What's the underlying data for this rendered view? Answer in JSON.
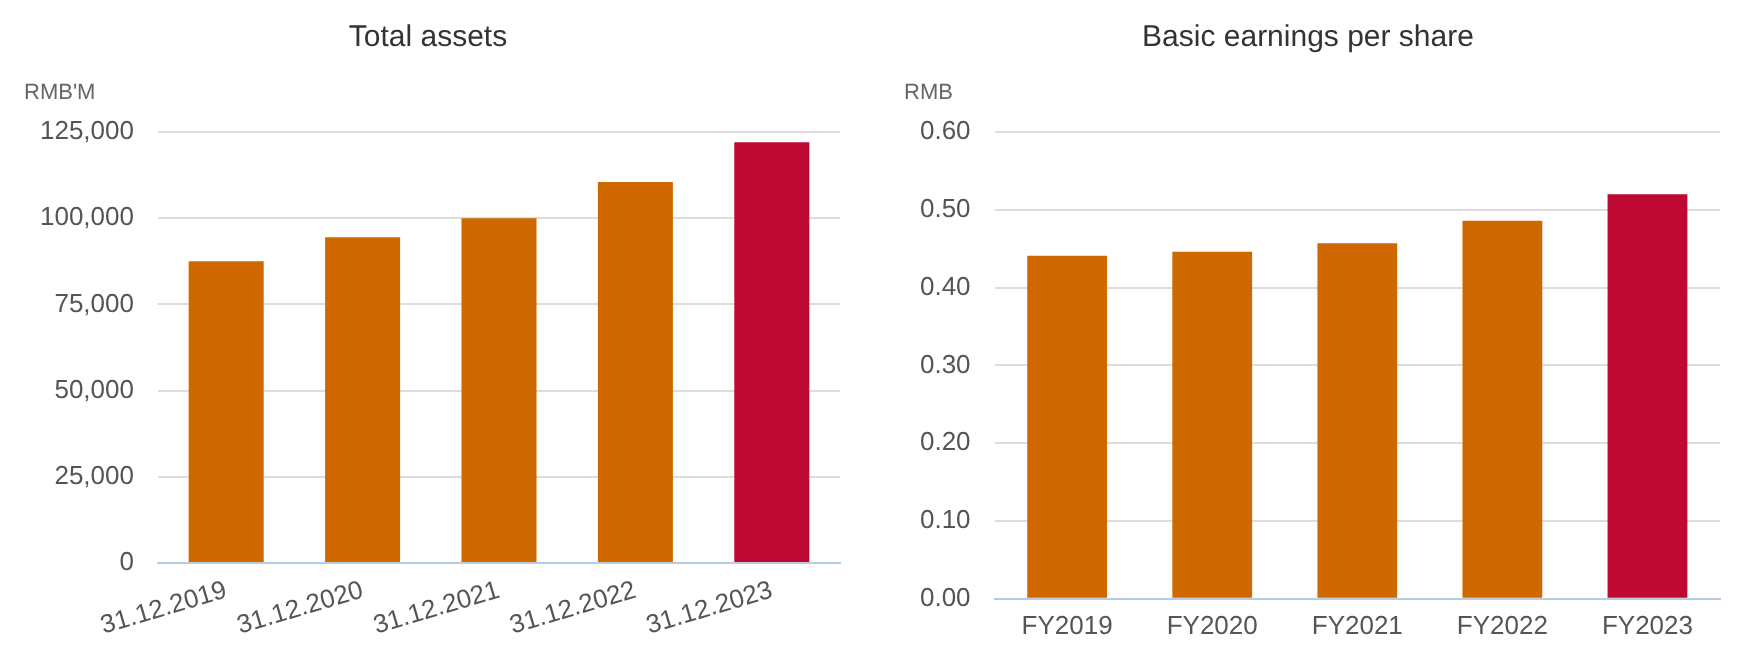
{
  "chart_data": [
    {
      "type": "bar",
      "title": "Total assets",
      "ylabel": "RMB'M",
      "categories": [
        "31.12.2019",
        "31.12.2020",
        "31.12.2021",
        "31.12.2022",
        "31.12.2023"
      ],
      "values": [
        87500,
        94500,
        100000,
        110500,
        122000
      ],
      "colors": [
        "#d06800",
        "#d06800",
        "#d06800",
        "#d06800",
        "#be0a32"
      ],
      "ylim": [
        0,
        125000
      ],
      "yticks": [
        {
          "value": 0,
          "label": "0"
        },
        {
          "value": 25000,
          "label": "25,000"
        },
        {
          "value": 50000,
          "label": "50,000"
        },
        {
          "value": 75000,
          "label": "75,000"
        },
        {
          "value": 100000,
          "label": "100,000"
        },
        {
          "value": 125000,
          "label": "125,000"
        }
      ],
      "grid": "y",
      "legend": false
    },
    {
      "type": "bar",
      "title": "Basic earnings per share",
      "ylabel": "RMB",
      "categories": [
        "FY2019",
        "FY2020",
        "FY2021",
        "FY2022",
        "FY2023"
      ],
      "values": [
        0.441,
        0.446,
        0.457,
        0.486,
        0.52
      ],
      "colors": [
        "#d06800",
        "#d06800",
        "#d06800",
        "#d06800",
        "#be0a32"
      ],
      "ylim": [
        0,
        0.6
      ],
      "yticks": [
        {
          "value": 0,
          "label": "0.00"
        },
        {
          "value": 0.1,
          "label": "0.10"
        },
        {
          "value": 0.2,
          "label": "0.20"
        },
        {
          "value": 0.3,
          "label": "0.30"
        },
        {
          "value": 0.4,
          "label": "0.40"
        },
        {
          "value": 0.5,
          "label": "0.50"
        },
        {
          "value": 0.6,
          "label": "0.60"
        }
      ],
      "grid": "y",
      "legend": false
    }
  ]
}
